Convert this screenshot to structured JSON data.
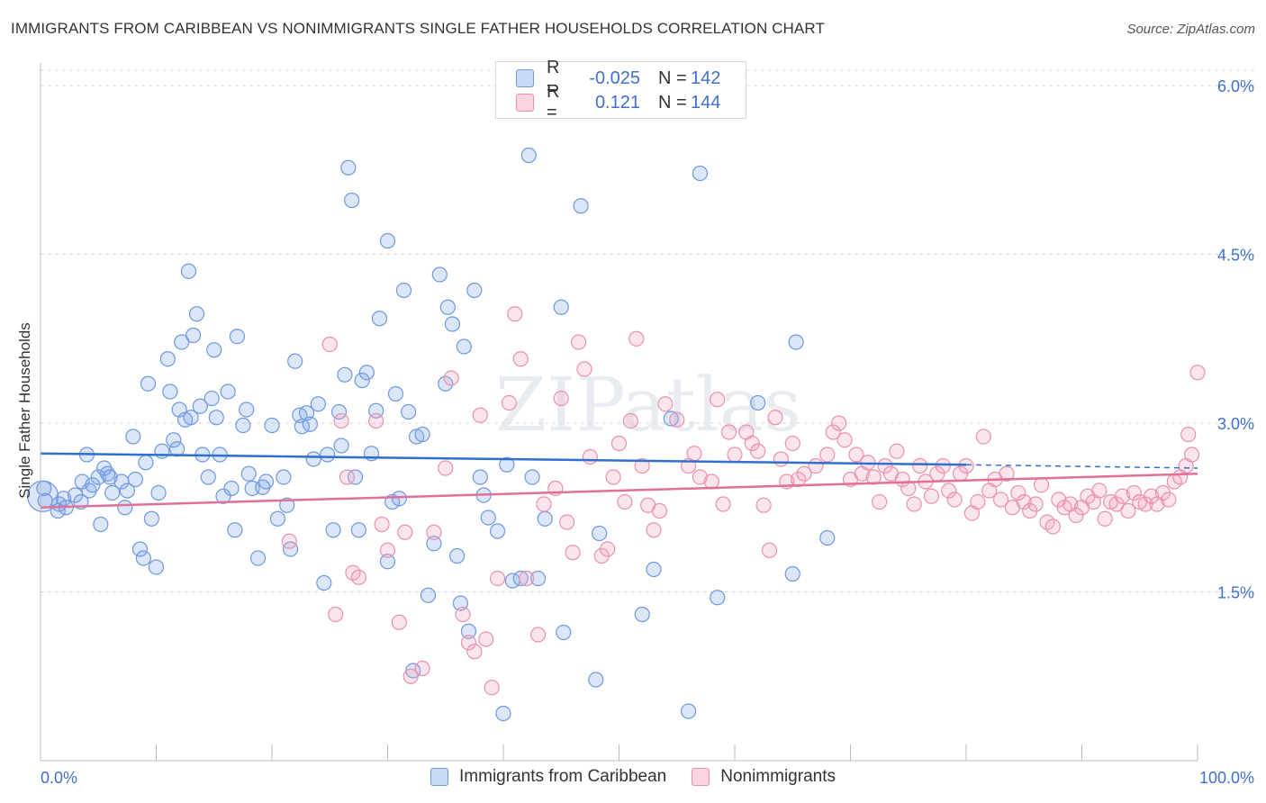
{
  "title": "IMMIGRANTS FROM CARIBBEAN VS NONIMMIGRANTS SINGLE FATHER HOUSEHOLDS CORRELATION CHART",
  "source": "Source: ZipAtlas.com",
  "watermark": "ZIPatlas",
  "legend_top": {
    "rows": [
      {
        "r_label": "R =",
        "r_value": "-0.025",
        "n_label": "N =",
        "n_value": "142",
        "color": "#a9c4f0",
        "border": "#6f98df"
      },
      {
        "r_label": "R =",
        "r_value": "0.121",
        "n_label": "N =",
        "n_value": "144",
        "color": "#f7bcd0",
        "border": "#ea8fb0"
      }
    ]
  },
  "legend_bottom": [
    {
      "label": "Immigrants from Caribbean",
      "color": "#a9c4f0",
      "border": "#6f98df"
    },
    {
      "label": "Nonimmigrants",
      "color": "#f7bcd0",
      "border": "#ea8fb0"
    }
  ],
  "chart_data": {
    "type": "scatter",
    "title": "IMMIGRANTS FROM CARIBBEAN VS NONIMMIGRANTS SINGLE FATHER HOUSEHOLDS CORRELATION CHART",
    "xlabel": "",
    "ylabel": "Single Father Households",
    "xlim": [
      0,
      100
    ],
    "ylim": [
      0,
      6.2
    ],
    "x_ticks": [
      0,
      10,
      20,
      30,
      40,
      50,
      60,
      70,
      80,
      90,
      100
    ],
    "x_tick_labels": {
      "0": "0.0%",
      "100": "100.0%"
    },
    "y_ticks": [
      1.5,
      3.0,
      4.5,
      6.0
    ],
    "y_tick_labels": [
      "1.5%",
      "3.0%",
      "4.5%",
      "6.0%"
    ],
    "grid": true,
    "legend_position": "top-center",
    "series": [
      {
        "name": "Immigrants from Caribbean",
        "color": "#7ea6e8",
        "line_color": "#2f6fd1",
        "trend": {
          "x0": 0,
          "y0": 2.73,
          "x1": 80,
          "y1": 2.63,
          "dashed_to": 100,
          "dashed_y": 2.6
        },
        "points": [
          [
            0.2,
            2.35
          ],
          [
            0.3,
            2.42
          ],
          [
            0.4,
            2.31
          ],
          [
            1.5,
            2.22
          ],
          [
            1.6,
            2.28
          ],
          [
            2.0,
            2.33
          ],
          [
            2.2,
            2.25
          ],
          [
            3.0,
            2.36
          ],
          [
            3.5,
            2.3
          ],
          [
            4.0,
            2.72
          ],
          [
            3.6,
            2.48
          ],
          [
            4.2,
            2.4
          ],
          [
            4.5,
            2.45
          ],
          [
            5.0,
            2.52
          ],
          [
            5.2,
            2.1
          ],
          [
            5.5,
            2.6
          ],
          [
            5.8,
            2.55
          ],
          [
            6.0,
            2.52
          ],
          [
            6.2,
            2.38
          ],
          [
            7.0,
            2.48
          ],
          [
            7.3,
            2.25
          ],
          [
            7.5,
            2.4
          ],
          [
            8.0,
            2.88
          ],
          [
            8.2,
            2.5
          ],
          [
            8.6,
            1.88
          ],
          [
            8.9,
            1.8
          ],
          [
            9.1,
            2.65
          ],
          [
            9.3,
            3.35
          ],
          [
            9.6,
            2.15
          ],
          [
            10.0,
            1.72
          ],
          [
            10.2,
            2.38
          ],
          [
            10.5,
            2.75
          ],
          [
            11.0,
            3.57
          ],
          [
            11.2,
            3.28
          ],
          [
            11.5,
            2.85
          ],
          [
            11.8,
            2.77
          ],
          [
            12.0,
            3.12
          ],
          [
            12.2,
            3.72
          ],
          [
            12.5,
            3.03
          ],
          [
            12.8,
            4.35
          ],
          [
            13.0,
            3.05
          ],
          [
            13.2,
            3.78
          ],
          [
            13.5,
            3.97
          ],
          [
            13.8,
            3.15
          ],
          [
            14.0,
            2.72
          ],
          [
            14.5,
            2.52
          ],
          [
            14.8,
            3.22
          ],
          [
            15.0,
            3.65
          ],
          [
            15.2,
            3.05
          ],
          [
            15.5,
            2.72
          ],
          [
            15.8,
            2.35
          ],
          [
            16.2,
            3.28
          ],
          [
            16.5,
            2.42
          ],
          [
            16.8,
            2.05
          ],
          [
            17.0,
            3.77
          ],
          [
            17.5,
            2.98
          ],
          [
            17.8,
            3.12
          ],
          [
            18.0,
            2.55
          ],
          [
            18.3,
            2.42
          ],
          [
            18.8,
            1.8
          ],
          [
            19.2,
            2.43
          ],
          [
            19.5,
            2.48
          ],
          [
            20.0,
            2.98
          ],
          [
            20.5,
            2.15
          ],
          [
            21.0,
            2.52
          ],
          [
            21.3,
            2.27
          ],
          [
            21.6,
            1.88
          ],
          [
            22.0,
            3.55
          ],
          [
            22.4,
            3.07
          ],
          [
            22.6,
            2.97
          ],
          [
            23.0,
            3.09
          ],
          [
            23.3,
            2.99
          ],
          [
            23.6,
            2.68
          ],
          [
            24.0,
            3.17
          ],
          [
            24.5,
            1.58
          ],
          [
            24.8,
            2.72
          ],
          [
            25.3,
            2.05
          ],
          [
            25.8,
            3.1
          ],
          [
            26.0,
            2.8
          ],
          [
            26.3,
            3.43
          ],
          [
            26.6,
            5.27
          ],
          [
            26.9,
            4.98
          ],
          [
            27.2,
            2.52
          ],
          [
            27.5,
            2.05
          ],
          [
            27.8,
            3.38
          ],
          [
            28.2,
            3.45
          ],
          [
            28.6,
            2.73
          ],
          [
            29.0,
            3.11
          ],
          [
            29.3,
            3.93
          ],
          [
            30.0,
            1.77
          ],
          [
            30.0,
            4.62
          ],
          [
            30.4,
            2.3
          ],
          [
            30.7,
            3.26
          ],
          [
            31.0,
            2.33
          ],
          [
            31.4,
            4.18
          ],
          [
            31.8,
            3.1
          ],
          [
            32.2,
            0.8
          ],
          [
            32.5,
            2.88
          ],
          [
            33.0,
            2.9
          ],
          [
            33.5,
            1.47
          ],
          [
            34.0,
            1.93
          ],
          [
            34.5,
            4.32
          ],
          [
            35.0,
            3.35
          ],
          [
            35.2,
            4.03
          ],
          [
            35.6,
            3.88
          ],
          [
            36.0,
            1.82
          ],
          [
            36.3,
            1.4
          ],
          [
            36.6,
            3.68
          ],
          [
            37.0,
            1.15
          ],
          [
            37.5,
            4.18
          ],
          [
            38.0,
            2.52
          ],
          [
            38.3,
            2.36
          ],
          [
            38.7,
            2.16
          ],
          [
            39.5,
            2.04
          ],
          [
            40.0,
            0.42
          ],
          [
            40.3,
            2.63
          ],
          [
            40.8,
            1.6
          ],
          [
            41.5,
            1.62
          ],
          [
            42.2,
            5.38
          ],
          [
            42.5,
            2.52
          ],
          [
            43.0,
            1.62
          ],
          [
            43.6,
            2.15
          ],
          [
            45.0,
            4.03
          ],
          [
            45.2,
            1.14
          ],
          [
            46.7,
            4.93
          ],
          [
            48.0,
            0.72
          ],
          [
            48.3,
            2.02
          ],
          [
            52.0,
            1.3
          ],
          [
            53.0,
            1.7
          ],
          [
            54.5,
            3.04
          ],
          [
            56.0,
            0.44
          ],
          [
            57.0,
            5.22
          ],
          [
            58.5,
            1.45
          ],
          [
            62.0,
            3.18
          ],
          [
            65.0,
            1.66
          ],
          [
            65.3,
            3.72
          ],
          [
            68.0,
            1.98
          ]
        ]
      },
      {
        "name": "Nonimmigrants",
        "color": "#f2a3bf",
        "line_color": "#e0709a",
        "trend": {
          "x0": 0,
          "y0": 2.25,
          "x1": 100,
          "y1": 2.55
        },
        "points": [
          [
            21.5,
            1.95
          ],
          [
            25.0,
            3.7
          ],
          [
            25.5,
            1.3
          ],
          [
            26.0,
            3.02
          ],
          [
            26.5,
            2.52
          ],
          [
            27.0,
            1.67
          ],
          [
            27.5,
            1.63
          ],
          [
            29.0,
            3.02
          ],
          [
            29.5,
            2.1
          ],
          [
            30.0,
            1.87
          ],
          [
            31.0,
            1.23
          ],
          [
            31.5,
            2.03
          ],
          [
            32.0,
            0.75
          ],
          [
            33.0,
            0.82
          ],
          [
            34.0,
            2.03
          ],
          [
            35.0,
            2.6
          ],
          [
            35.5,
            3.4
          ],
          [
            36.5,
            1.3
          ],
          [
            37.0,
            1.05
          ],
          [
            37.5,
            0.97
          ],
          [
            38.0,
            3.07
          ],
          [
            38.5,
            1.08
          ],
          [
            39.0,
            0.65
          ],
          [
            39.5,
            1.62
          ],
          [
            40.5,
            3.18
          ],
          [
            41.0,
            3.97
          ],
          [
            41.5,
            3.57
          ],
          [
            42.0,
            1.62
          ],
          [
            43.0,
            1.12
          ],
          [
            43.5,
            2.28
          ],
          [
            44.5,
            2.42
          ],
          [
            45.0,
            3.22
          ],
          [
            45.5,
            2.12
          ],
          [
            46.0,
            1.85
          ],
          [
            46.5,
            3.72
          ],
          [
            47.0,
            3.48
          ],
          [
            47.5,
            2.7
          ],
          [
            48.5,
            1.82
          ],
          [
            49.0,
            1.88
          ],
          [
            49.5,
            2.52
          ],
          [
            50.0,
            2.82
          ],
          [
            50.5,
            2.3
          ],
          [
            51.0,
            3.02
          ],
          [
            51.5,
            3.75
          ],
          [
            52.0,
            2.62
          ],
          [
            52.5,
            2.27
          ],
          [
            53.0,
            2.05
          ],
          [
            53.5,
            2.22
          ],
          [
            54.0,
            3.17
          ],
          [
            55.0,
            3.03
          ],
          [
            56.0,
            2.62
          ],
          [
            56.5,
            2.73
          ],
          [
            57.0,
            2.52
          ],
          [
            58.0,
            2.48
          ],
          [
            58.5,
            3.21
          ],
          [
            59.0,
            2.28
          ],
          [
            59.5,
            2.92
          ],
          [
            60.0,
            2.72
          ],
          [
            61.0,
            2.92
          ],
          [
            61.5,
            2.82
          ],
          [
            62.0,
            2.75
          ],
          [
            62.5,
            2.27
          ],
          [
            63.0,
            1.87
          ],
          [
            63.5,
            3.05
          ],
          [
            64.0,
            2.68
          ],
          [
            64.5,
            2.48
          ],
          [
            65.0,
            2.82
          ],
          [
            65.5,
            2.5
          ],
          [
            66.0,
            2.55
          ],
          [
            67.0,
            2.62
          ],
          [
            68.0,
            2.72
          ],
          [
            68.5,
            2.92
          ],
          [
            69.0,
            3.0
          ],
          [
            69.5,
            2.85
          ],
          [
            70.0,
            2.5
          ],
          [
            70.5,
            2.72
          ],
          [
            71.0,
            2.55
          ],
          [
            71.5,
            2.65
          ],
          [
            72.0,
            2.52
          ],
          [
            72.5,
            2.3
          ],
          [
            73.0,
            2.62
          ],
          [
            73.5,
            2.55
          ],
          [
            74.0,
            2.75
          ],
          [
            74.5,
            2.5
          ],
          [
            75.0,
            2.42
          ],
          [
            75.5,
            2.28
          ],
          [
            76.0,
            2.62
          ],
          [
            76.5,
            2.48
          ],
          [
            77.0,
            2.35
          ],
          [
            77.5,
            2.55
          ],
          [
            78.0,
            2.62
          ],
          [
            78.5,
            2.4
          ],
          [
            79.0,
            2.32
          ],
          [
            79.5,
            2.55
          ],
          [
            80.0,
            2.62
          ],
          [
            80.5,
            2.2
          ],
          [
            81.0,
            2.3
          ],
          [
            81.5,
            2.88
          ],
          [
            82.0,
            2.4
          ],
          [
            82.5,
            2.5
          ],
          [
            83.0,
            2.32
          ],
          [
            83.5,
            2.55
          ],
          [
            84.0,
            2.25
          ],
          [
            84.5,
            2.38
          ],
          [
            85.0,
            2.3
          ],
          [
            85.5,
            2.22
          ],
          [
            86.0,
            2.28
          ],
          [
            86.5,
            2.45
          ],
          [
            87.0,
            2.12
          ],
          [
            87.5,
            2.08
          ],
          [
            88.0,
            2.32
          ],
          [
            88.5,
            2.25
          ],
          [
            89.0,
            2.28
          ],
          [
            89.5,
            2.18
          ],
          [
            90.0,
            2.25
          ],
          [
            90.5,
            2.35
          ],
          [
            91.0,
            2.3
          ],
          [
            91.5,
            2.4
          ],
          [
            92.0,
            2.15
          ],
          [
            92.5,
            2.3
          ],
          [
            93.0,
            2.28
          ],
          [
            93.5,
            2.35
          ],
          [
            94.0,
            2.22
          ],
          [
            94.5,
            2.38
          ],
          [
            95.0,
            2.3
          ],
          [
            95.5,
            2.28
          ],
          [
            96.0,
            2.35
          ],
          [
            96.5,
            2.28
          ],
          [
            97.0,
            2.38
          ],
          [
            97.5,
            2.32
          ],
          [
            98.0,
            2.48
          ],
          [
            98.5,
            2.52
          ],
          [
            99.0,
            2.62
          ],
          [
            99.2,
            2.9
          ],
          [
            99.5,
            2.72
          ],
          [
            100.0,
            3.45
          ]
        ]
      }
    ]
  }
}
